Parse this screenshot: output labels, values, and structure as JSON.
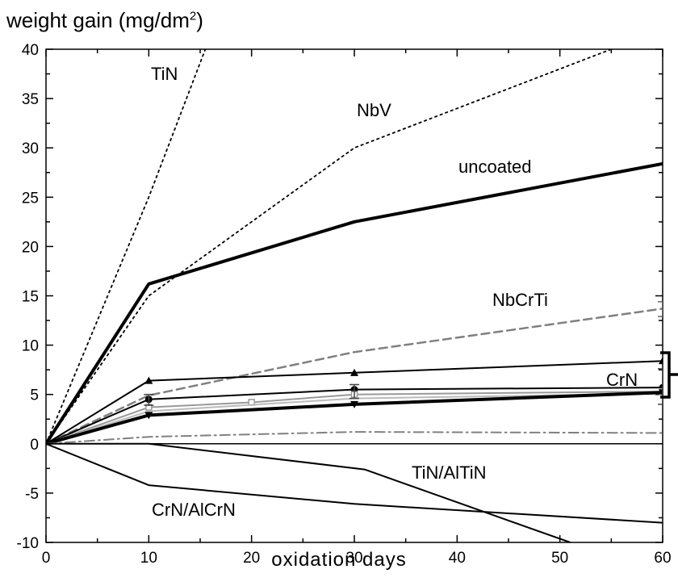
{
  "chart_data": {
    "type": "line",
    "ylabel_main": "weight gain (mg/dm",
    "ylabel_sup": "2",
    "ylabel_end": ")",
    "xlabel": "oxidation days",
    "xlim": [
      0,
      60
    ],
    "ylim": [
      -10,
      40
    ],
    "x_ticks": [
      "0",
      "10",
      "20",
      "30",
      "40",
      "50",
      "60"
    ],
    "y_ticks": [
      "40",
      "35",
      "30",
      "25",
      "20",
      "15",
      "10",
      "5",
      "0",
      "-5",
      "-10"
    ],
    "grid": false,
    "annotations": {
      "tin": "TiN",
      "nbv": "NbV",
      "uncoated": "uncoated",
      "nbcrti": "NbCrTi",
      "crn": "CrN",
      "tin_altin": "TiN/AlTiN",
      "crn_alcrn": "CrN/AlCrN"
    },
    "series": [
      {
        "label": "TiN",
        "style": "dotted",
        "color": "#000000",
        "x": [
          0,
          10,
          15.5
        ],
        "y": [
          0,
          25,
          40
        ]
      },
      {
        "label": "NbV",
        "style": "dotted",
        "color": "#000000",
        "x": [
          0,
          10,
          30,
          55
        ],
        "y": [
          0,
          15,
          30,
          40
        ]
      },
      {
        "label": "uncoated",
        "style": "thick",
        "color": "#000000",
        "x": [
          0,
          10,
          30,
          60
        ],
        "y": [
          0,
          16.2,
          22.5,
          28.4
        ]
      },
      {
        "label": "NbCrTi",
        "style": "dashed",
        "color": "#808080",
        "x": [
          0,
          10,
          30,
          60
        ],
        "y": [
          0,
          4.9,
          9.3,
          13.7
        ]
      },
      {
        "style": "solid",
        "color": "#000000",
        "marker": "triangle-up",
        "x": [
          0,
          10,
          30,
          60
        ],
        "y": [
          0,
          6.4,
          7.2,
          8.4
        ]
      },
      {
        "style": "solid",
        "color": "#000000",
        "marker": "circle",
        "x": [
          0,
          10,
          30,
          60
        ],
        "y": [
          0,
          4.5,
          5.5,
          5.7
        ]
      },
      {
        "style": "solid",
        "color": "#999999",
        "marker": "square",
        "x": [
          0,
          10,
          20,
          30,
          60
        ],
        "y": [
          0,
          3.7,
          4.2,
          5.0,
          5.3
        ]
      },
      {
        "style": "solid",
        "color": "#bbbbbb",
        "x": [
          0,
          10,
          30,
          60
        ],
        "y": [
          0,
          3.3,
          4.6,
          5.1
        ]
      },
      {
        "style": "thick",
        "color": "#000000",
        "marker": "triangle-down",
        "x": [
          0,
          10,
          30,
          60
        ],
        "y": [
          0,
          2.9,
          4.0,
          5.2
        ]
      },
      {
        "style": "dashdot",
        "color": "#808080",
        "x": [
          0,
          10,
          30,
          60
        ],
        "y": [
          0,
          0.7,
          1.2,
          1.1
        ]
      },
      {
        "label": "TiN/AlTiN",
        "style": "solid",
        "color": "#000000",
        "x": [
          0,
          10,
          31,
          51
        ],
        "y": [
          0,
          0,
          -2.6,
          -10
        ]
      },
      {
        "label": "CrN/AlCrN",
        "style": "solid",
        "color": "#000000",
        "x": [
          0,
          10,
          30,
          60
        ],
        "y": [
          0,
          -4.2,
          -6.1,
          -8.0
        ]
      }
    ],
    "error_bars": [
      {
        "x": 60,
        "y": 13.7,
        "low": 12.9,
        "high": 14.4,
        "color": "#666666"
      },
      {
        "x": 60,
        "y": 5.7,
        "low": 4.0,
        "high": 7.6,
        "color": "#444444"
      },
      {
        "x": 10,
        "y": 4.5,
        "low": 3.9,
        "high": 5.0,
        "color": "#444444"
      },
      {
        "x": 30,
        "y": 5.3,
        "low": 4.6,
        "high": 6.0,
        "color": "#444444"
      }
    ]
  }
}
